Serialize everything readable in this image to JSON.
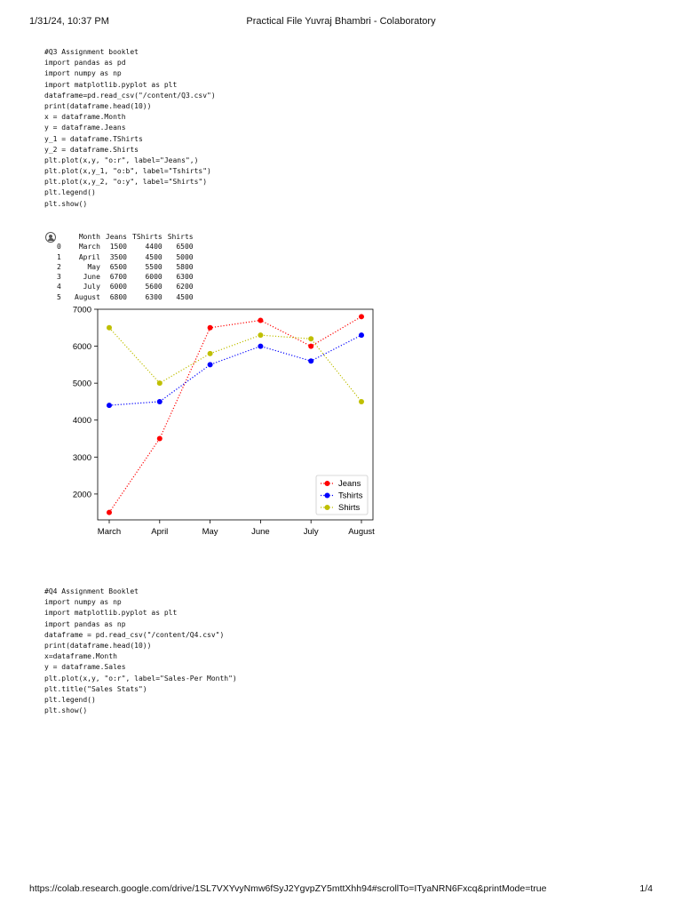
{
  "header": {
    "datetime": "1/31/24, 10:37 PM",
    "title": "Practical File Yuvraj Bhambri - Colaboratory"
  },
  "footer": {
    "url": "https://colab.research.google.com/drive/1SL7VXYvyNmw6fSyJ2YgvpZY5mttXhh94#scrollTo=ITyaNRN6Fxcq&printMode=true",
    "page": "1/4"
  },
  "cell1": {
    "code": [
      "#Q3 Assignment booklet",
      "import pandas as pd",
      "import numpy as np",
      "import matplotlib.pyplot as plt",
      "dataframe=pd.read_csv(\"/content/Q3.csv\")",
      "print(dataframe.head(10))",
      "x = dataframe.Month",
      "y = dataframe.Jeans",
      "y_1 = dataframe.TShirts",
      "y_2 = dataframe.Shirts",
      "plt.plot(x,y, \"o:r\", label=\"Jeans\",)",
      "plt.plot(x,y_1, \"o:b\", label=\"Tshirts\")",
      "plt.plot(x,y_2, \"o:y\", label=\"Shirts\")",
      "plt.legend()",
      "plt.show()"
    ]
  },
  "output1": {
    "table": {
      "columns": [
        "",
        "Month",
        "Jeans",
        "TShirts",
        "Shirts"
      ],
      "rows": [
        [
          "0",
          "March",
          "1500",
          "4400",
          "6500"
        ],
        [
          "1",
          "April",
          "3500",
          "4500",
          "5000"
        ],
        [
          "2",
          "May",
          "6500",
          "5500",
          "5800"
        ],
        [
          "3",
          "June",
          "6700",
          "6000",
          "6300"
        ],
        [
          "4",
          "July",
          "6000",
          "5600",
          "6200"
        ],
        [
          "5",
          "August",
          "6800",
          "6300",
          "4500"
        ]
      ]
    }
  },
  "chart_data": {
    "type": "line",
    "categories": [
      "March",
      "April",
      "May",
      "June",
      "July",
      "August"
    ],
    "series": [
      {
        "name": "Jeans",
        "color": "#ff0000",
        "values": [
          1500,
          3500,
          6500,
          6700,
          6000,
          6800
        ]
      },
      {
        "name": "Tshirts",
        "color": "#0000ff",
        "values": [
          4400,
          4500,
          5500,
          6000,
          5600,
          6300
        ]
      },
      {
        "name": "Shirts",
        "color": "#bfbf00",
        "values": [
          6500,
          5000,
          5800,
          6300,
          6200,
          4500
        ]
      }
    ],
    "yticks": [
      2000,
      3000,
      4000,
      5000,
      6000,
      7000
    ],
    "ylim": [
      1300,
      7000
    ],
    "line_style": "dotted",
    "marker": "circle",
    "legend_position": "lower-right",
    "grid": false
  },
  "cell2": {
    "code": [
      "#Q4 Assignment Booklet",
      "import numpy as np",
      "import matplotlib.pyplot as plt",
      "import pandas as np",
      "dataframe = pd.read_csv(\"/content/Q4.csv\")",
      "print(dataframe.head(10))",
      "x=dataframe.Month",
      "y = dataframe.Sales",
      "plt.plot(x,y, \"o:r\", label=\"Sales-Per Month\")",
      "plt.title(\"Sales Stats\")",
      "plt.legend()",
      "plt.show()"
    ]
  }
}
